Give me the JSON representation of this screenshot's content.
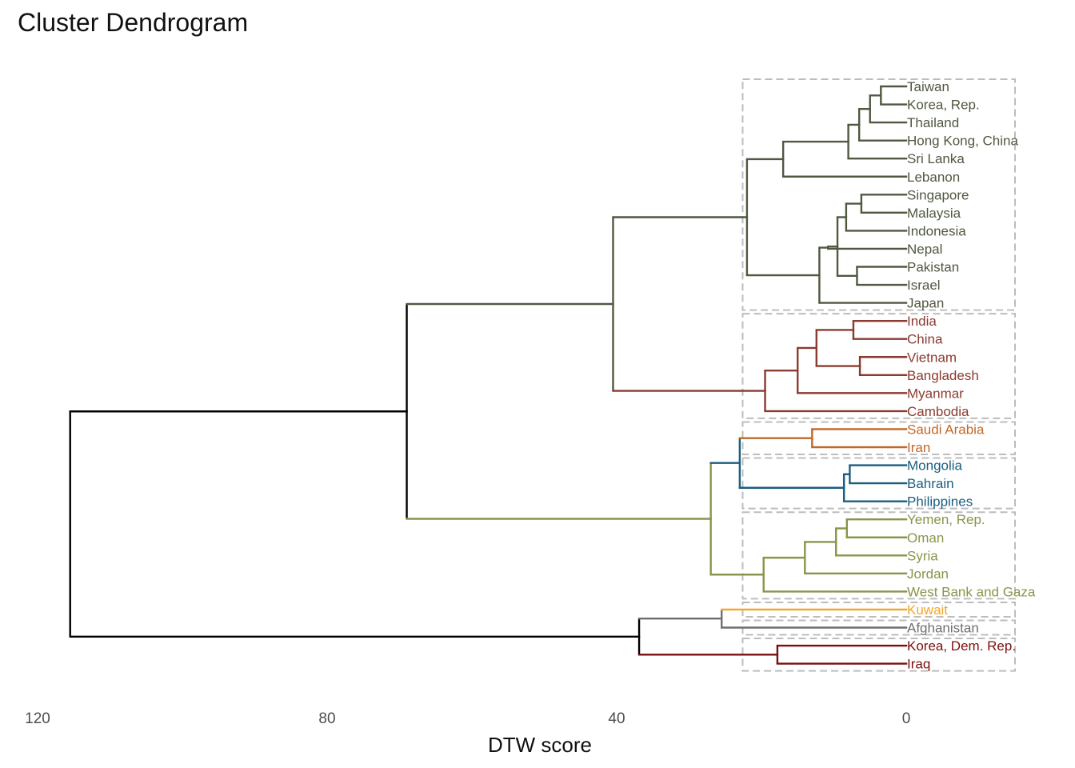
{
  "chart_data": {
    "type": "dendrogram",
    "title": "Cluster Dendrogram",
    "xlabel": "DTW score",
    "xlim": [
      120,
      -15
    ],
    "x_ticks": [
      120,
      80,
      40,
      0
    ],
    "x_tick_labels": [
      "120",
      "80",
      "40",
      "0"
    ],
    "grid": false,
    "leaves": [
      {
        "name": "Taiwan",
        "group": 0
      },
      {
        "name": "Korea, Rep.",
        "group": 0
      },
      {
        "name": "Thailand",
        "group": 0
      },
      {
        "name": "Hong Kong, China",
        "group": 0
      },
      {
        "name": "Sri Lanka",
        "group": 0
      },
      {
        "name": "Lebanon",
        "group": 0
      },
      {
        "name": "Singapore",
        "group": 0
      },
      {
        "name": "Malaysia",
        "group": 0
      },
      {
        "name": "Indonesia",
        "group": 0
      },
      {
        "name": "Nepal",
        "group": 0
      },
      {
        "name": "Pakistan",
        "group": 0
      },
      {
        "name": "Israel",
        "group": 0
      },
      {
        "name": "Japan",
        "group": 0
      },
      {
        "name": "India",
        "group": 1
      },
      {
        "name": "China",
        "group": 1
      },
      {
        "name": "Vietnam",
        "group": 1
      },
      {
        "name": "Bangladesh",
        "group": 1
      },
      {
        "name": "Myanmar",
        "group": 1
      },
      {
        "name": "Cambodia",
        "group": 1
      },
      {
        "name": "Saudi Arabia",
        "group": 2
      },
      {
        "name": "Iran",
        "group": 2
      },
      {
        "name": "Mongolia",
        "group": 3
      },
      {
        "name": "Bahrain",
        "group": 3
      },
      {
        "name": "Philippines",
        "group": 3
      },
      {
        "name": "Yemen, Rep.",
        "group": 4
      },
      {
        "name": "Oman",
        "group": 4
      },
      {
        "name": "Syria",
        "group": 4
      },
      {
        "name": "Jordan",
        "group": 4
      },
      {
        "name": "West Bank and Gaza",
        "group": 4
      },
      {
        "name": "Kuwait",
        "group": 5
      },
      {
        "name": "Afghanistan",
        "group": 6
      },
      {
        "name": "Korea, Dem. Rep.",
        "group": 7
      },
      {
        "name": "Iraq",
        "group": 7
      }
    ],
    "groups": [
      {
        "color": "#4f5840",
        "leaves": [
          0,
          12
        ]
      },
      {
        "color": "#8a3b30",
        "leaves": [
          13,
          18
        ]
      },
      {
        "color": "#c0682a",
        "leaves": [
          19,
          20
        ]
      },
      {
        "color": "#1b5e7e",
        "leaves": [
          21,
          23
        ]
      },
      {
        "color": "#8b944a",
        "leaves": [
          24,
          28
        ]
      },
      {
        "color": "#f5a623",
        "leaves": [
          29,
          29
        ]
      },
      {
        "color": "#6e6e6e",
        "leaves": [
          30,
          30
        ]
      },
      {
        "color": "#7a0e0e",
        "leaves": [
          31,
          32
        ]
      }
    ],
    "root_color": "#000000",
    "merges": [
      {
        "l": 0,
        "r": 1,
        "h": 3.5,
        "c": 0
      },
      {
        "l": -1,
        "r": 2,
        "h": 5,
        "c": 0
      },
      {
        "l": -2,
        "r": 3,
        "h": 6.5,
        "c": 0
      },
      {
        "l": -3,
        "r": 4,
        "h": 8,
        "c": 0
      },
      {
        "l": -4,
        "r": 5,
        "h": 17,
        "c": 0
      },
      {
        "l": 6,
        "r": 7,
        "h": 6.2,
        "c": 0
      },
      {
        "l": -6,
        "r": 8,
        "h": 8.3,
        "c": 0
      },
      {
        "l": 10,
        "r": 11,
        "h": 6.8,
        "c": 0
      },
      {
        "l": -7,
        "r": -8,
        "h": 9.5,
        "c": 0
      },
      {
        "l": -9,
        "r": 9,
        "h": 10.8,
        "c": 0
      },
      {
        "l": -10,
        "r": 12,
        "h": 12,
        "c": 0
      },
      {
        "l": -5,
        "r": -11,
        "h": 22,
        "c": 0
      },
      {
        "l": 13,
        "r": 14,
        "h": 7.3,
        "c": 1
      },
      {
        "l": 15,
        "r": 16,
        "h": 6.4,
        "c": 1
      },
      {
        "l": -13,
        "r": -14,
        "h": 12.4,
        "c": 1
      },
      {
        "l": -15,
        "r": 17,
        "h": 15,
        "c": 1
      },
      {
        "l": -16,
        "r": 18,
        "h": 19.5,
        "c": 1
      },
      {
        "l": -12,
        "r": -17,
        "h": 40.5,
        "c": 0
      },
      {
        "l": 19,
        "r": 20,
        "h": 13,
        "c": 2
      },
      {
        "l": 21,
        "r": 22,
        "h": 7.8,
        "c": 3
      },
      {
        "l": -20,
        "r": 23,
        "h": 8.6,
        "c": 3
      },
      {
        "l": -19,
        "r": -21,
        "h": 23,
        "c": 3
      },
      {
        "l": 24,
        "r": 25,
        "h": 8.2,
        "c": 4
      },
      {
        "l": -23,
        "r": 26,
        "h": 9.7,
        "c": 4
      },
      {
        "l": -24,
        "r": 27,
        "h": 14,
        "c": 4
      },
      {
        "l": -25,
        "r": 28,
        "h": 19.7,
        "c": 4
      },
      {
        "l": -22,
        "r": -26,
        "h": 27,
        "c": 4
      },
      {
        "l": -18,
        "r": -27,
        "h": 69,
        "c": "root"
      },
      {
        "l": 29,
        "r": 30,
        "h": 25.5,
        "c": 6
      },
      {
        "l": 31,
        "r": 32,
        "h": 17.8,
        "c": 7
      },
      {
        "l": -29,
        "r": -30,
        "h": 36.9,
        "c": "root"
      },
      {
        "l": -28,
        "r": -31,
        "h": 115.5,
        "c": "root"
      }
    ]
  }
}
